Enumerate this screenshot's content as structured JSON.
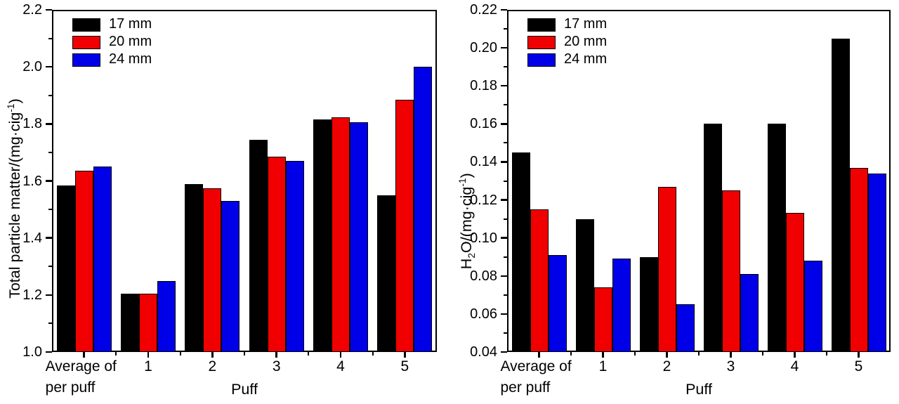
{
  "chart_data": [
    {
      "type": "bar",
      "panel": "left",
      "title": "",
      "xlabel": "Puff",
      "ylabel": "Total particle matter/(mg·cig⁻¹)",
      "ylabel_parts": [
        {
          "t": "Total particle matter/(mg·cig"
        },
        {
          "t": "-1",
          "sup": true
        },
        {
          "t": ")"
        }
      ],
      "categories": [
        [
          "Average of",
          "per puff"
        ],
        "1",
        "2",
        "3",
        "4",
        "5"
      ],
      "ylim": [
        1.0,
        2.2
      ],
      "ymajor_ticks": [
        "1.0",
        "1.2",
        "1.4",
        "1.6",
        "1.8",
        "2.0",
        "2.2"
      ],
      "yminor_step": 0.1,
      "grid": false,
      "legend_position": "top-left",
      "series": [
        {
          "name": "17 mm",
          "color": "#000000",
          "values": [
            1.585,
            1.205,
            1.59,
            1.745,
            1.815,
            1.55
          ]
        },
        {
          "name": "20 mm",
          "color": "#f00000",
          "values": [
            1.635,
            1.205,
            1.575,
            1.685,
            1.822,
            1.885
          ]
        },
        {
          "name": "24 mm",
          "color": "#0000e8",
          "values": [
            1.65,
            1.25,
            1.53,
            1.67,
            1.805,
            2.0
          ]
        }
      ]
    },
    {
      "type": "bar",
      "panel": "right",
      "title": "",
      "xlabel": "Puff",
      "ylabel": "H₂O/(mg·cig⁻¹)",
      "ylabel_parts": [
        {
          "t": "H"
        },
        {
          "t": "2",
          "sub": true
        },
        {
          "t": "O/(mg·cig"
        },
        {
          "t": "-1",
          "sup": true
        },
        {
          "t": ")"
        }
      ],
      "categories": [
        [
          "Average of",
          "per puff"
        ],
        "1",
        "2",
        "3",
        "4",
        "5"
      ],
      "ylim": [
        0.04,
        0.22
      ],
      "ymajor_ticks": [
        "0.04",
        "0.06",
        "0.08",
        "0.10",
        "0.12",
        "0.14",
        "0.16",
        "0.18",
        "0.20",
        "0.22"
      ],
      "yminor_step": 0.01,
      "grid": false,
      "legend_position": "top-left",
      "series": [
        {
          "name": "17 mm",
          "color": "#000000",
          "values": [
            0.145,
            0.11,
            0.09,
            0.16,
            0.16,
            0.205
          ]
        },
        {
          "name": "20 mm",
          "color": "#f00000",
          "values": [
            0.115,
            0.074,
            0.127,
            0.125,
            0.113,
            0.137
          ]
        },
        {
          "name": "24 mm",
          "color": "#0000e8",
          "values": [
            0.091,
            0.089,
            0.065,
            0.081,
            0.088,
            0.134
          ]
        }
      ]
    }
  ]
}
